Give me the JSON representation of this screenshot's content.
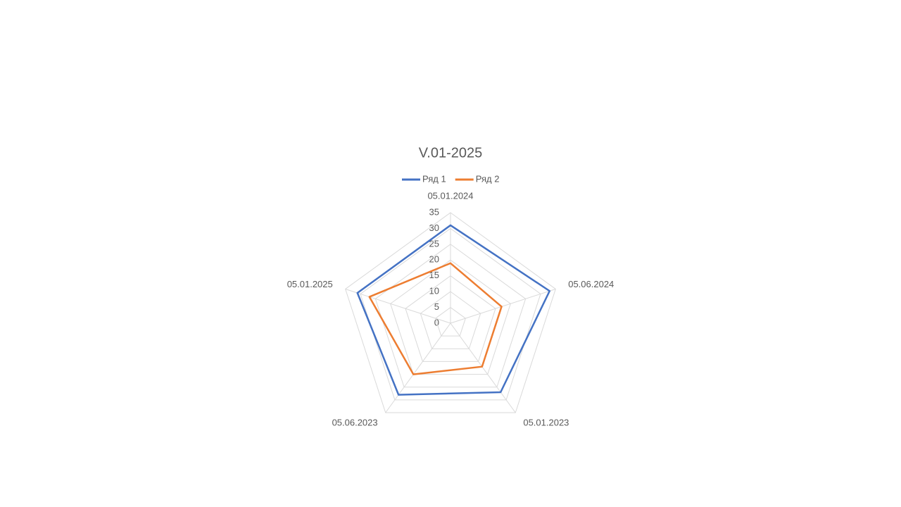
{
  "chart_data": {
    "type": "radar",
    "title": "V.01-2025",
    "categories": [
      "05.01.2024",
      "05.06.2024",
      "05.01.2023",
      "05.06.2023",
      "05.01.2025"
    ],
    "series": [
      {
        "name": "Ряд 1",
        "color": "#4472c4",
        "values": [
          31,
          33,
          27,
          28,
          31
        ]
      },
      {
        "name": "Ряд 2",
        "color": "#ed7d31",
        "values": [
          19,
          17,
          17,
          20,
          27
        ]
      }
    ],
    "rlim": [
      0,
      35
    ],
    "rticks": [
      0,
      5,
      10,
      15,
      20,
      25,
      30,
      35
    ],
    "grid": true,
    "legend": "top"
  }
}
